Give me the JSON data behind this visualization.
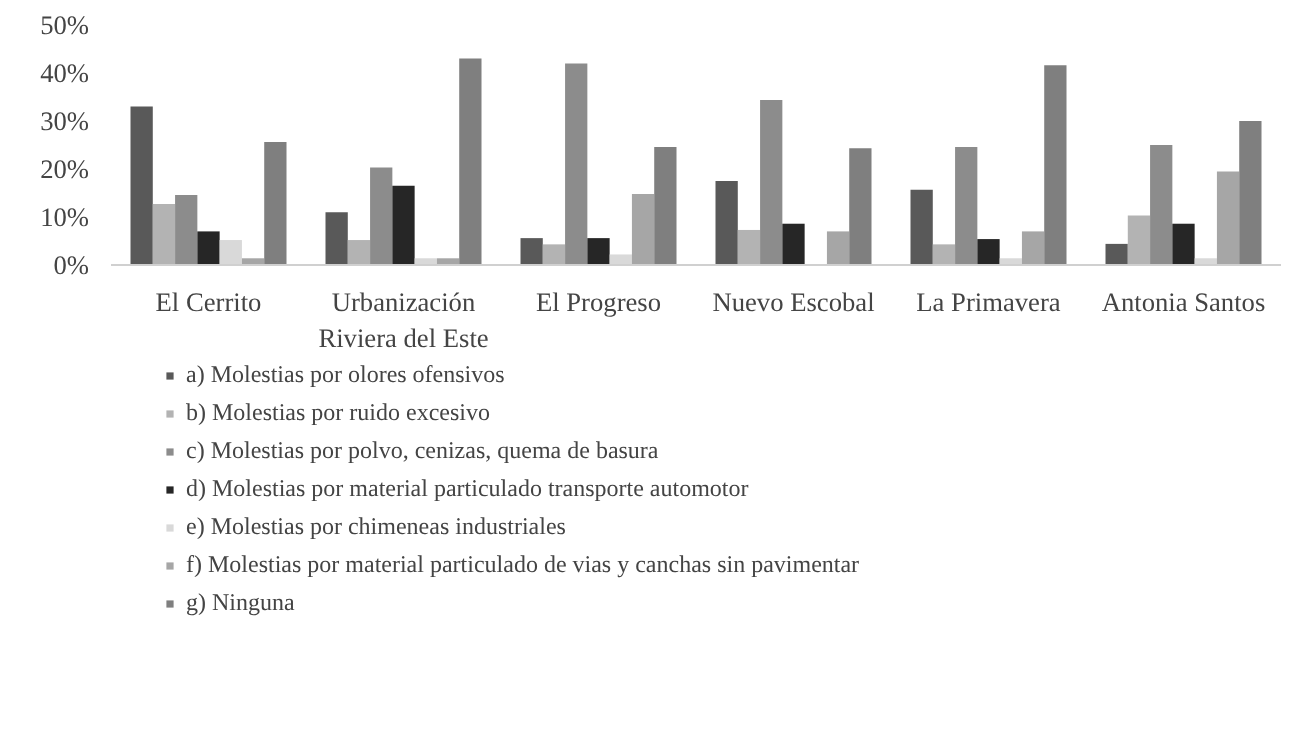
{
  "chart_data": {
    "type": "bar",
    "categories": [
      "El Cerrito",
      "Urbanización\nRiviera del Este",
      "El Progreso",
      "Nuevo Escobal",
      "La Primavera",
      "Antonia Santos"
    ],
    "series": [
      {
        "name": "a) Molestias por olores ofensivos",
        "color": "#595959",
        "values": [
          33,
          11,
          5.6,
          17.5,
          15.7,
          4.4
        ]
      },
      {
        "name": "b) Molestias por ruido excesivo",
        "color": "#b3b3b3",
        "values": [
          12.7,
          5.2,
          4.3,
          7.3,
          4.3,
          10.3
        ]
      },
      {
        "name": "c) Molestias por polvo, cenizas, quema de basura",
        "color": "#8c8c8c",
        "values": [
          14.6,
          20.3,
          42,
          34.4,
          24.6,
          25
        ]
      },
      {
        "name": "d) Molestias por material particulado transporte automotor",
        "color": "#262626",
        "values": [
          7,
          16.5,
          5.6,
          8.6,
          5.4,
          8.6
        ]
      },
      {
        "name": "e) Molestias por chimeneas industriales",
        "color": "#d9d9d9",
        "values": [
          5.2,
          1.4,
          2.2,
          0,
          1.4,
          1.4
        ]
      },
      {
        "name": "f) Molestias por material particulado de vias y canchas sin pavimentar",
        "color": "#a6a6a6",
        "values": [
          1.4,
          1.4,
          14.8,
          7,
          7,
          19.5
        ]
      },
      {
        "name": "g) Ninguna",
        "color": "#7f7f7f",
        "values": [
          25.6,
          43,
          24.6,
          24.3,
          41.6,
          30
        ]
      }
    ],
    "ylim": [
      0,
      50
    ],
    "yticks": [
      {
        "value": 0,
        "label": "0%"
      },
      {
        "value": 10,
        "label": "10%"
      },
      {
        "value": 20,
        "label": "20%"
      },
      {
        "value": 30,
        "label": "30%"
      },
      {
        "value": 40,
        "label": "40%"
      },
      {
        "value": 50,
        "label": "50%"
      }
    ],
    "grid": false,
    "legend": "bottom"
  }
}
